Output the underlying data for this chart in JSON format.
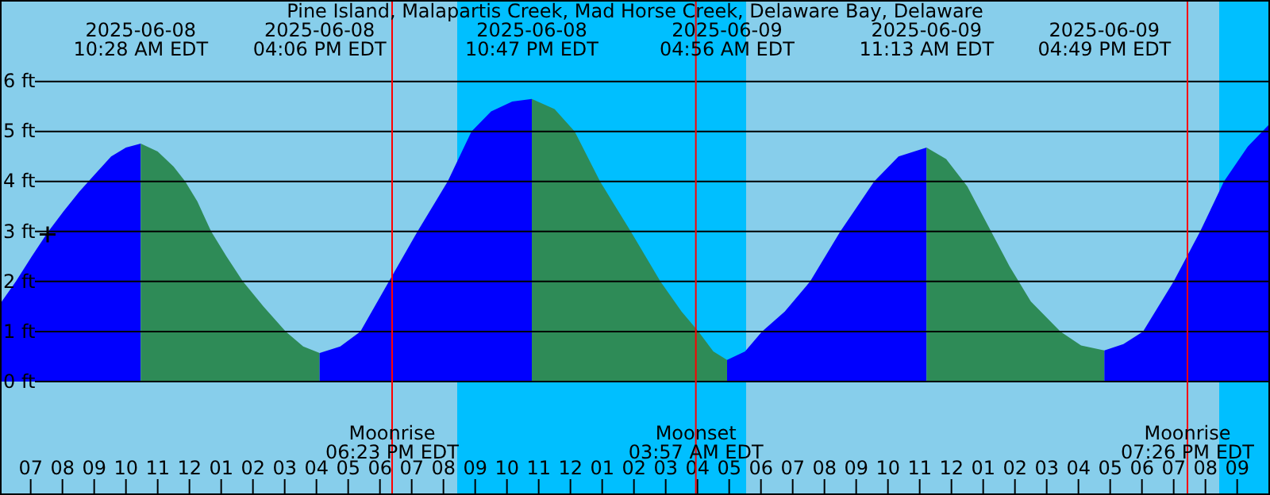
{
  "chart_data": {
    "type": "area",
    "title": "Pine Island, Malapartis Creek, Mad Horse Creek, Delaware Bay, Delaware",
    "xlim": [
      "2025-06-08T06:02",
      "2025-06-09T22:02"
    ],
    "xticks": [
      {
        "value": "2025-06-08T07:00",
        "label": "07"
      },
      {
        "value": "2025-06-08T08:00",
        "label": "08"
      },
      {
        "value": "2025-06-08T09:00",
        "label": "09"
      },
      {
        "value": "2025-06-08T10:00",
        "label": "10"
      },
      {
        "value": "2025-06-08T11:00",
        "label": "11"
      },
      {
        "value": "2025-06-08T12:00",
        "label": "12"
      },
      {
        "value": "2025-06-08T13:00",
        "label": "01"
      },
      {
        "value": "2025-06-08T14:00",
        "label": "02"
      },
      {
        "value": "2025-06-08T15:00",
        "label": "03"
      },
      {
        "value": "2025-06-08T16:00",
        "label": "04"
      },
      {
        "value": "2025-06-08T17:00",
        "label": "05"
      },
      {
        "value": "2025-06-08T18:00",
        "label": "06"
      },
      {
        "value": "2025-06-08T19:00",
        "label": "07"
      },
      {
        "value": "2025-06-08T20:00",
        "label": "08"
      },
      {
        "value": "2025-06-08T21:00",
        "label": "09"
      },
      {
        "value": "2025-06-08T22:00",
        "label": "10"
      },
      {
        "value": "2025-06-08T23:00",
        "label": "11"
      },
      {
        "value": "2025-06-09T00:00",
        "label": "12"
      },
      {
        "value": "2025-06-09T01:00",
        "label": "01"
      },
      {
        "value": "2025-06-09T02:00",
        "label": "02"
      },
      {
        "value": "2025-06-09T03:00",
        "label": "03"
      },
      {
        "value": "2025-06-09T04:00",
        "label": "04"
      },
      {
        "value": "2025-06-09T05:00",
        "label": "05"
      },
      {
        "value": "2025-06-09T06:00",
        "label": "06"
      },
      {
        "value": "2025-06-09T07:00",
        "label": "07"
      },
      {
        "value": "2025-06-09T08:00",
        "label": "08"
      },
      {
        "value": "2025-06-09T09:00",
        "label": "09"
      },
      {
        "value": "2025-06-09T10:00",
        "label": "10"
      },
      {
        "value": "2025-06-09T11:00",
        "label": "11"
      },
      {
        "value": "2025-06-09T12:00",
        "label": "12"
      },
      {
        "value": "2025-06-09T13:00",
        "label": "01"
      },
      {
        "value": "2025-06-09T14:00",
        "label": "02"
      },
      {
        "value": "2025-06-09T15:00",
        "label": "03"
      },
      {
        "value": "2025-06-09T16:00",
        "label": "04"
      },
      {
        "value": "2025-06-09T17:00",
        "label": "05"
      },
      {
        "value": "2025-06-09T18:00",
        "label": "06"
      },
      {
        "value": "2025-06-09T19:00",
        "label": "07"
      },
      {
        "value": "2025-06-09T20:00",
        "label": "08"
      },
      {
        "value": "2025-06-09T21:00",
        "label": "09"
      }
    ],
    "ylim": [
      -2.27,
      7.63
    ],
    "yticks": [
      {
        "value": 0,
        "label": "0 ft"
      },
      {
        "value": 1,
        "label": "1 ft"
      },
      {
        "value": 2,
        "label": "2 ft"
      },
      {
        "value": 3,
        "label": "3 ft"
      },
      {
        "value": 4,
        "label": "4 ft"
      },
      {
        "value": 5,
        "label": "5 ft"
      },
      {
        "value": 6,
        "label": "6 ft"
      }
    ],
    "grid": "y",
    "bands": [
      {
        "axis": "x",
        "from": "2025-06-08T20:26",
        "to": "2025-06-09T05:32",
        "color": "#00bfff"
      },
      {
        "axis": "x",
        "from": "2025-06-09T20:26",
        "to": "2025-06-09T22:02",
        "color": "#00bfff"
      }
    ],
    "ref_lines": [
      {
        "axis": "x",
        "value": "2025-06-08T18:23",
        "label": "Moonrise\n06:23 PM EDT",
        "color": "#ff0000"
      },
      {
        "axis": "x",
        "value": "2025-06-09T03:57",
        "label": "Moonset\n03:57 AM EDT",
        "color": "#ff0000"
      },
      {
        "axis": "x",
        "value": "2025-06-09T19:26",
        "label": "Moonrise\n07:26 PM EDT",
        "color": "#ff0000"
      }
    ],
    "series": [
      {
        "color": "#0000ff",
        "x": [
          "2025-06-08T06:02",
          "2025-06-08T06:32",
          "2025-06-08T07:02",
          "2025-06-08T07:32",
          "2025-06-08T08:02",
          "2025-06-08T08:32",
          "2025-06-08T09:02",
          "2025-06-08T09:32",
          "2025-06-08T10:00",
          "2025-06-08T10:28"
        ],
        "values": [
          1.55,
          2.0,
          2.5,
          2.98,
          3.4,
          3.8,
          4.15,
          4.5,
          4.68,
          4.76
        ]
      },
      {
        "color": "#2e8b57",
        "x": [
          "2025-06-08T10:28",
          "2025-06-08T11:00",
          "2025-06-08T11:30",
          "2025-06-08T11:52",
          "2025-06-08T12:15",
          "2025-06-08T12:41",
          "2025-06-08T13:10",
          "2025-06-08T13:41",
          "2025-06-08T14:20",
          "2025-06-08T15:02",
          "2025-06-08T15:35",
          "2025-06-08T16:06"
        ],
        "values": [
          4.76,
          4.6,
          4.3,
          4.0,
          3.6,
          3.0,
          2.5,
          2.0,
          1.5,
          1.0,
          0.7,
          0.57
        ]
      },
      {
        "color": "#0000ff",
        "x": [
          "2025-06-08T16:06",
          "2025-06-08T16:45",
          "2025-06-08T17:23",
          "2025-06-08T18:17",
          "2025-06-08T19:11",
          "2025-06-08T20:08",
          "2025-06-08T20:53",
          "2025-06-08T21:30",
          "2025-06-08T22:10",
          "2025-06-08T22:47"
        ],
        "values": [
          0.57,
          0.7,
          1.0,
          2.0,
          3.0,
          4.0,
          5.0,
          5.4,
          5.6,
          5.65
        ]
      },
      {
        "color": "#2e8b57",
        "x": [
          "2025-06-08T22:47",
          "2025-06-08T23:30",
          "2025-06-09T00:08",
          "2025-06-09T00:56",
          "2025-06-09T01:54",
          "2025-06-09T02:50",
          "2025-06-09T03:30",
          "2025-06-09T04:02",
          "2025-06-09T04:30",
          "2025-06-09T04:56"
        ],
        "values": [
          5.65,
          5.45,
          5.0,
          4.0,
          3.0,
          2.0,
          1.4,
          1.0,
          0.6,
          0.43
        ]
      },
      {
        "color": "#0000ff",
        "x": [
          "2025-06-09T04:56",
          "2025-06-09T05:30",
          "2025-06-09T06:02",
          "2025-06-09T06:45",
          "2025-06-09T07:33",
          "2025-06-09T08:30",
          "2025-06-09T09:34",
          "2025-06-09T10:20",
          "2025-06-09T11:13"
        ],
        "values": [
          0.43,
          0.6,
          1.0,
          1.4,
          2.0,
          3.0,
          4.0,
          4.5,
          4.68
        ]
      },
      {
        "color": "#2e8b57",
        "x": [
          "2025-06-09T11:13",
          "2025-06-09T11:50",
          "2025-06-09T12:30",
          "2025-06-09T13:10",
          "2025-06-09T13:50",
          "2025-06-09T14:30",
          "2025-06-09T15:26",
          "2025-06-09T16:05",
          "2025-06-09T16:49"
        ],
        "values": [
          4.68,
          4.45,
          3.9,
          3.1,
          2.3,
          1.6,
          1.0,
          0.72,
          0.62
        ]
      },
      {
        "color": "#0000ff",
        "x": [
          "2025-06-09T16:49",
          "2025-06-09T17:25",
          "2025-06-09T18:02",
          "2025-06-09T19:00",
          "2025-06-09T19:50",
          "2025-06-09T20:35",
          "2025-06-09T21:20",
          "2025-06-09T22:02"
        ],
        "values": [
          0.62,
          0.75,
          1.0,
          2.0,
          3.0,
          4.0,
          4.7,
          5.16
        ]
      },
      {
        "type": "scatter",
        "marker": "cross",
        "color": "#000000",
        "x": [
          "2025-06-08T07:32"
        ],
        "values": [
          2.94
        ]
      }
    ],
    "annotations": [
      "2025-06-08\n10:28 AM EDT",
      "2025-06-08\n04:06 PM EDT",
      "2025-06-08\n10:47 PM EDT",
      "2025-06-09\n04:56 AM EDT",
      "2025-06-09\n11:13 AM EDT",
      "2025-06-09\n04:49 PM EDT"
    ]
  }
}
